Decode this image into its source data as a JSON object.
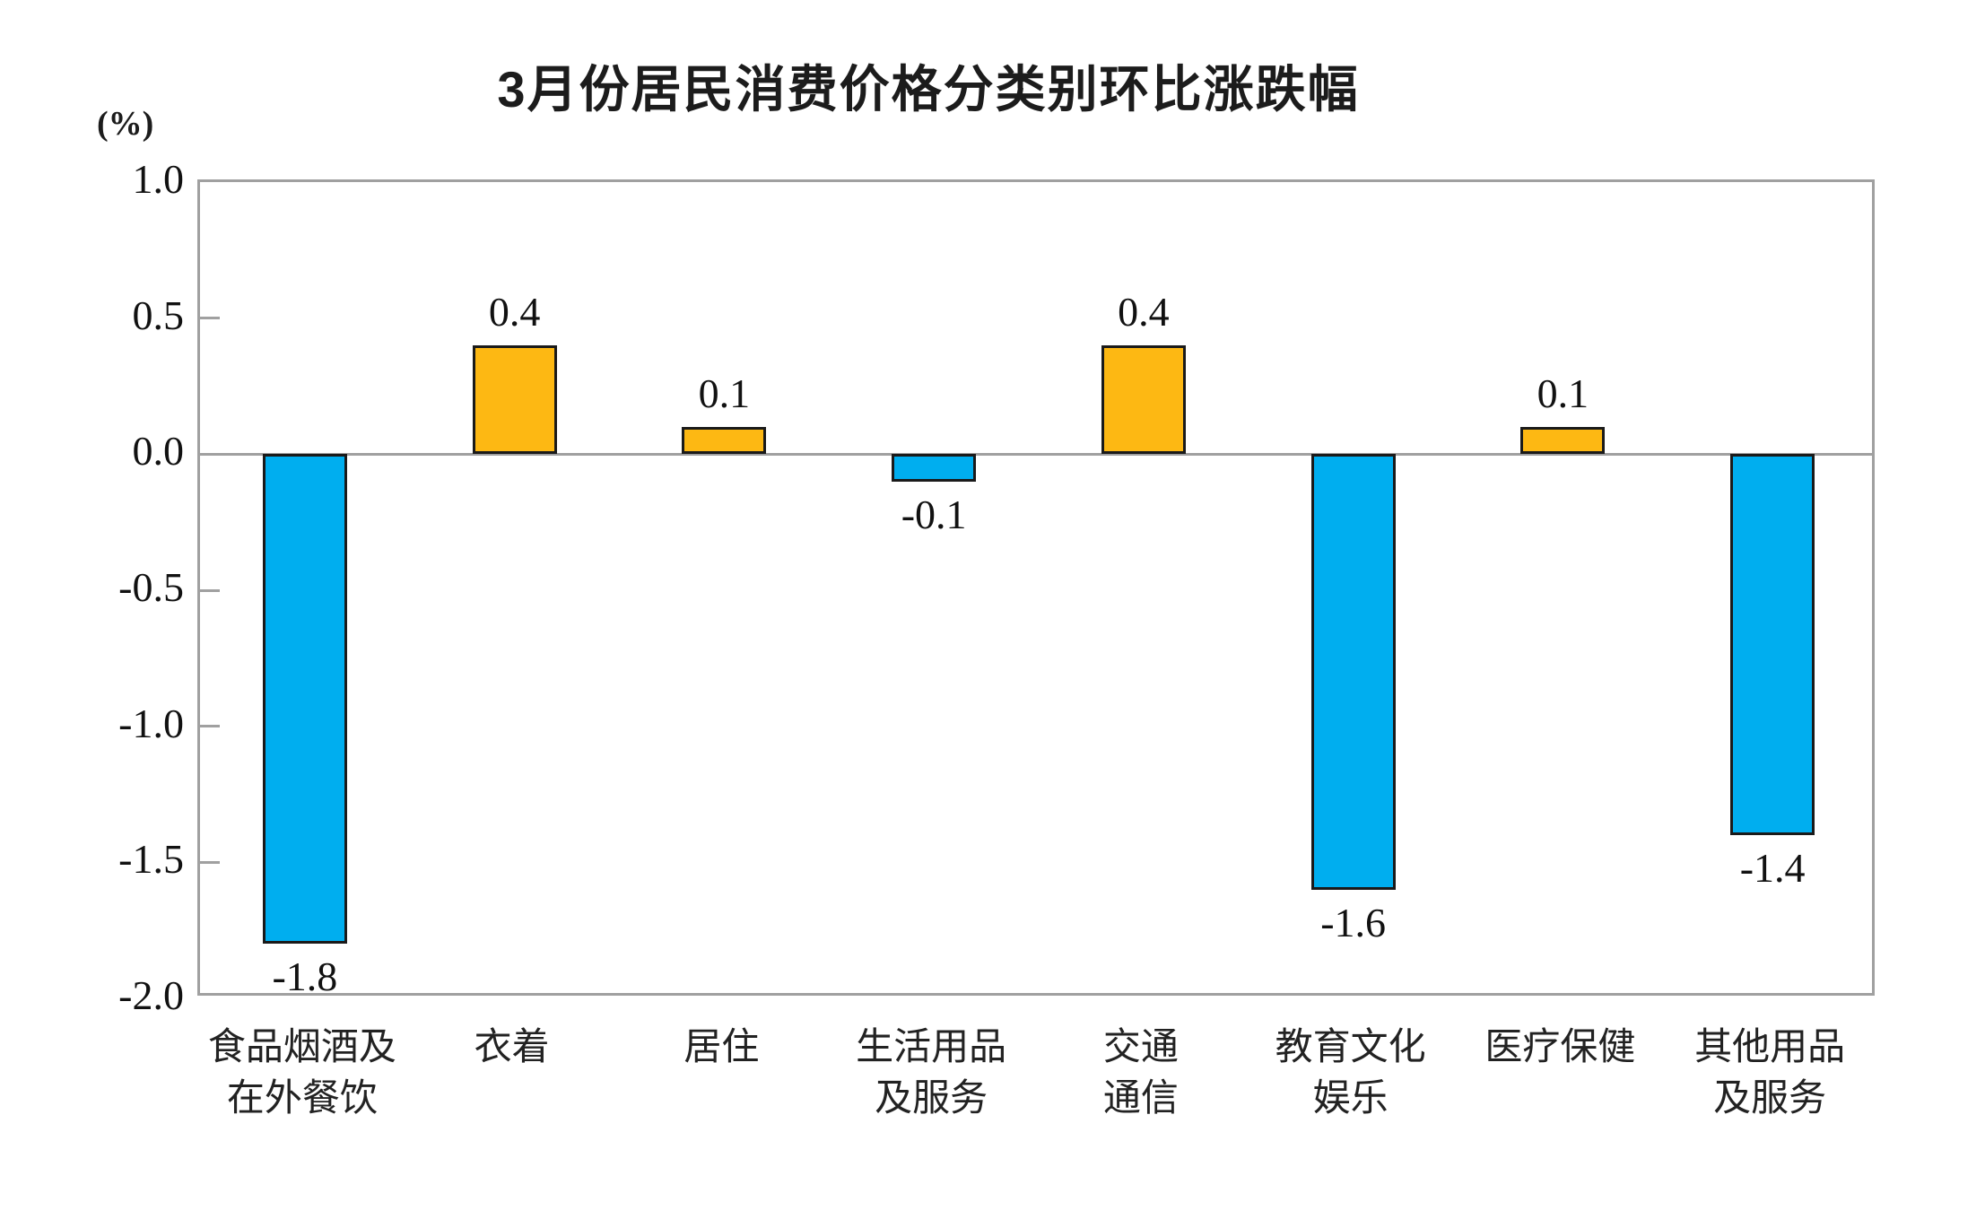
{
  "chart_data": {
    "type": "bar",
    "title": "3月份居民消费价格分类别环比涨跌幅",
    "ylabel": "(%)",
    "xlabel": "",
    "categories": [
      "食品烟酒及\n在外餐饮",
      "衣着",
      "居住",
      "生活用品\n及服务",
      "交通\n通信",
      "教育文化\n娱乐",
      "医疗保健",
      "其他用品\n及服务"
    ],
    "values": [
      -1.8,
      0.4,
      0.1,
      -0.1,
      0.4,
      -1.6,
      0.1,
      -1.4
    ],
    "value_labels": [
      "-1.8",
      "0.4",
      "0.1",
      "-0.1",
      "0.4",
      "-1.6",
      "0.1",
      "-1.4"
    ],
    "ylim": [
      -2.0,
      1.0
    ],
    "yticks": [
      1.0,
      0.5,
      0.0,
      -0.5,
      -1.0,
      -1.5,
      -2.0
    ],
    "ytick_labels": [
      "1.0",
      "0.5",
      "0.0",
      "-0.5",
      "-1.0",
      "-1.5",
      "-2.0"
    ],
    "grid": false,
    "legend": "none",
    "colors": {
      "positive_bar": "#FDB813",
      "negative_bar": "#00AEEF",
      "bar_border": "#1a1a1a",
      "axis": "#a0a0a0",
      "text": "#111111"
    }
  }
}
